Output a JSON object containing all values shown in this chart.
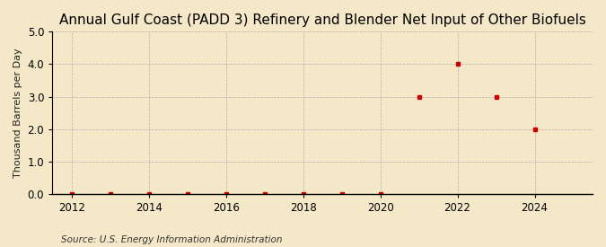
{
  "title": "Annual Gulf Coast (PADD 3) Refinery and Blender Net Input of Other Biofuels",
  "ylabel": "Thousand Barrels per Day",
  "source": "Source: U.S. Energy Information Administration",
  "background_color": "#f5e8c8",
  "plot_bg_color": "#f5e8c8",
  "x_data": [
    2012,
    2013,
    2014,
    2015,
    2016,
    2017,
    2018,
    2019,
    2020,
    2021,
    2022,
    2023,
    2024
  ],
  "y_data": [
    0.0,
    0.0,
    0.0,
    0.0,
    0.0,
    0.0,
    0.0,
    0.0,
    0.0,
    3.0,
    4.0,
    3.0,
    2.0
  ],
  "marker_color": "#cc0000",
  "marker_size": 3.5,
  "ylim": [
    0.0,
    5.0
  ],
  "xlim": [
    2011.5,
    2025.5
  ],
  "yticks": [
    0.0,
    1.0,
    2.0,
    3.0,
    4.0,
    5.0
  ],
  "xticks": [
    2012,
    2014,
    2016,
    2018,
    2020,
    2022,
    2024
  ],
  "grid_color": "#aaaaaa",
  "axis_line_color": "#000000",
  "title_fontsize": 11,
  "ylabel_fontsize": 8,
  "tick_fontsize": 8.5,
  "source_fontsize": 7.5
}
